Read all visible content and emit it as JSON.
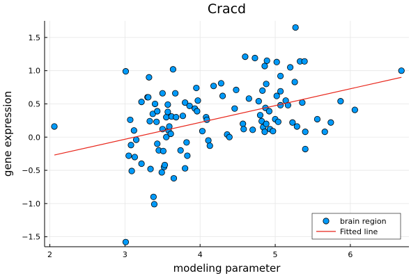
{
  "chart_data": {
    "type": "scatter",
    "title": "Cracd",
    "xlabel": "modeling parameter",
    "ylabel": "gene expression",
    "xlim": [
      1.93,
      6.78
    ],
    "ylim": [
      -1.65,
      1.75
    ],
    "xticks": [
      2,
      3,
      4,
      5,
      6
    ],
    "yticks": [
      -1.5,
      -1.0,
      -0.5,
      0.0,
      0.5,
      1.0,
      1.5
    ],
    "ytick_labels": [
      "−1.5",
      "−1.0",
      "−0.5",
      "0.0",
      "0.5",
      "1.0",
      "1.5"
    ],
    "xtick_labels": [
      "2",
      "3",
      "4",
      "5",
      "6"
    ],
    "grid": true,
    "legend_position": "bottom-right",
    "series": [
      {
        "name": "brain region",
        "kind": "scatter",
        "color": "#009AF9",
        "points": [
          [
            2.06,
            0.16
          ],
          [
            3.01,
            0.99
          ],
          [
            3.01,
            -1.58
          ],
          [
            3.05,
            -0.28
          ],
          [
            3.07,
            0.26
          ],
          [
            3.08,
            -0.12
          ],
          [
            3.09,
            -0.51
          ],
          [
            3.12,
            0.1
          ],
          [
            3.13,
            -0.3
          ],
          [
            3.15,
            -0.04
          ],
          [
            3.22,
            -0.4
          ],
          [
            3.22,
            0.53
          ],
          [
            3.3,
            0.6
          ],
          [
            3.31,
            0.6
          ],
          [
            3.32,
            0.9
          ],
          [
            3.33,
            0.24
          ],
          [
            3.34,
            -0.48
          ],
          [
            3.37,
            0.35
          ],
          [
            3.38,
            -0.9
          ],
          [
            3.39,
            -1.01
          ],
          [
            3.4,
            0.5
          ],
          [
            3.42,
            0.23
          ],
          [
            3.43,
            -0.1
          ],
          [
            3.43,
            0.39
          ],
          [
            3.45,
            -0.2
          ],
          [
            3.49,
            -0.53
          ],
          [
            3.5,
            0.66
          ],
          [
            3.5,
            0.12
          ],
          [
            3.51,
            -0.21
          ],
          [
            3.52,
            -0.45
          ],
          [
            3.53,
            -0.42
          ],
          [
            3.55,
            0.3
          ],
          [
            3.55,
            0.0
          ],
          [
            3.57,
            0.38
          ],
          [
            3.57,
            0.49
          ],
          [
            3.58,
            0.1
          ],
          [
            3.59,
            0.16
          ],
          [
            3.61,
            0.05
          ],
          [
            3.62,
            0.31
          ],
          [
            3.64,
            1.02
          ],
          [
            3.65,
            -0.62
          ],
          [
            3.67,
            0.66
          ],
          [
            3.68,
            0.3
          ],
          [
            3.74,
            -0.2
          ],
          [
            3.77,
            0.32
          ],
          [
            3.8,
            0.52
          ],
          [
            3.8,
            -0.47
          ],
          [
            3.82,
            -0.08
          ],
          [
            3.83,
            -0.28
          ],
          [
            3.86,
            0.47
          ],
          [
            3.93,
            0.43
          ],
          [
            3.95,
            0.74
          ],
          [
            3.96,
            0.39
          ],
          [
            3.97,
            0.55
          ],
          [
            4.03,
            0.09
          ],
          [
            4.08,
            0.3
          ],
          [
            4.09,
            0.26
          ],
          [
            4.11,
            -0.05
          ],
          [
            4.13,
            -0.13
          ],
          [
            4.18,
            0.77
          ],
          [
            4.28,
            0.81
          ],
          [
            4.3,
            0.62
          ],
          [
            4.36,
            0.04
          ],
          [
            4.39,
            0.0
          ],
          [
            4.46,
            0.43
          ],
          [
            4.48,
            0.71
          ],
          [
            4.57,
            0.2
          ],
          [
            4.58,
            0.12
          ],
          [
            4.6,
            1.21
          ],
          [
            4.65,
            0.58
          ],
          [
            4.7,
            0.11
          ],
          [
            4.73,
            1.19
          ],
          [
            4.78,
            0.54
          ],
          [
            4.8,
            0.33
          ],
          [
            4.82,
            0.24
          ],
          [
            4.83,
            0.7
          ],
          [
            4.84,
            0.15
          ],
          [
            4.86,
            0.08
          ],
          [
            4.86,
            1.07
          ],
          [
            4.87,
            0.44
          ],
          [
            4.88,
            0.2
          ],
          [
            4.88,
            0.8
          ],
          [
            4.89,
            1.15
          ],
          [
            4.92,
            0.39
          ],
          [
            4.93,
            0.12
          ],
          [
            4.97,
            0.09
          ],
          [
            5.0,
            0.27
          ],
          [
            5.02,
            1.13
          ],
          [
            5.02,
            0.62
          ],
          [
            5.04,
            0.23
          ],
          [
            5.07,
            0.48
          ],
          [
            5.07,
            0.92
          ],
          [
            5.07,
            0.69
          ],
          [
            5.14,
            0.55
          ],
          [
            5.17,
            0.48
          ],
          [
            5.2,
            1.05
          ],
          [
            5.23,
            0.22
          ],
          [
            5.26,
            0.83
          ],
          [
            5.27,
            1.65
          ],
          [
            5.29,
            0.16
          ],
          [
            5.33,
            1.14
          ],
          [
            5.36,
            0.52
          ],
          [
            5.39,
            1.14
          ],
          [
            5.4,
            0.08
          ],
          [
            5.4,
            -0.18
          ],
          [
            5.56,
            0.27
          ],
          [
            5.66,
            0.08
          ],
          [
            5.74,
            0.22
          ],
          [
            5.87,
            0.54
          ],
          [
            6.06,
            0.41
          ],
          [
            6.68,
            1.0
          ]
        ]
      },
      {
        "name": "Fitted line",
        "kind": "line",
        "color": "#E8251A",
        "points": [
          [
            2.06,
            -0.27
          ],
          [
            6.68,
            0.9
          ]
        ]
      }
    ]
  }
}
